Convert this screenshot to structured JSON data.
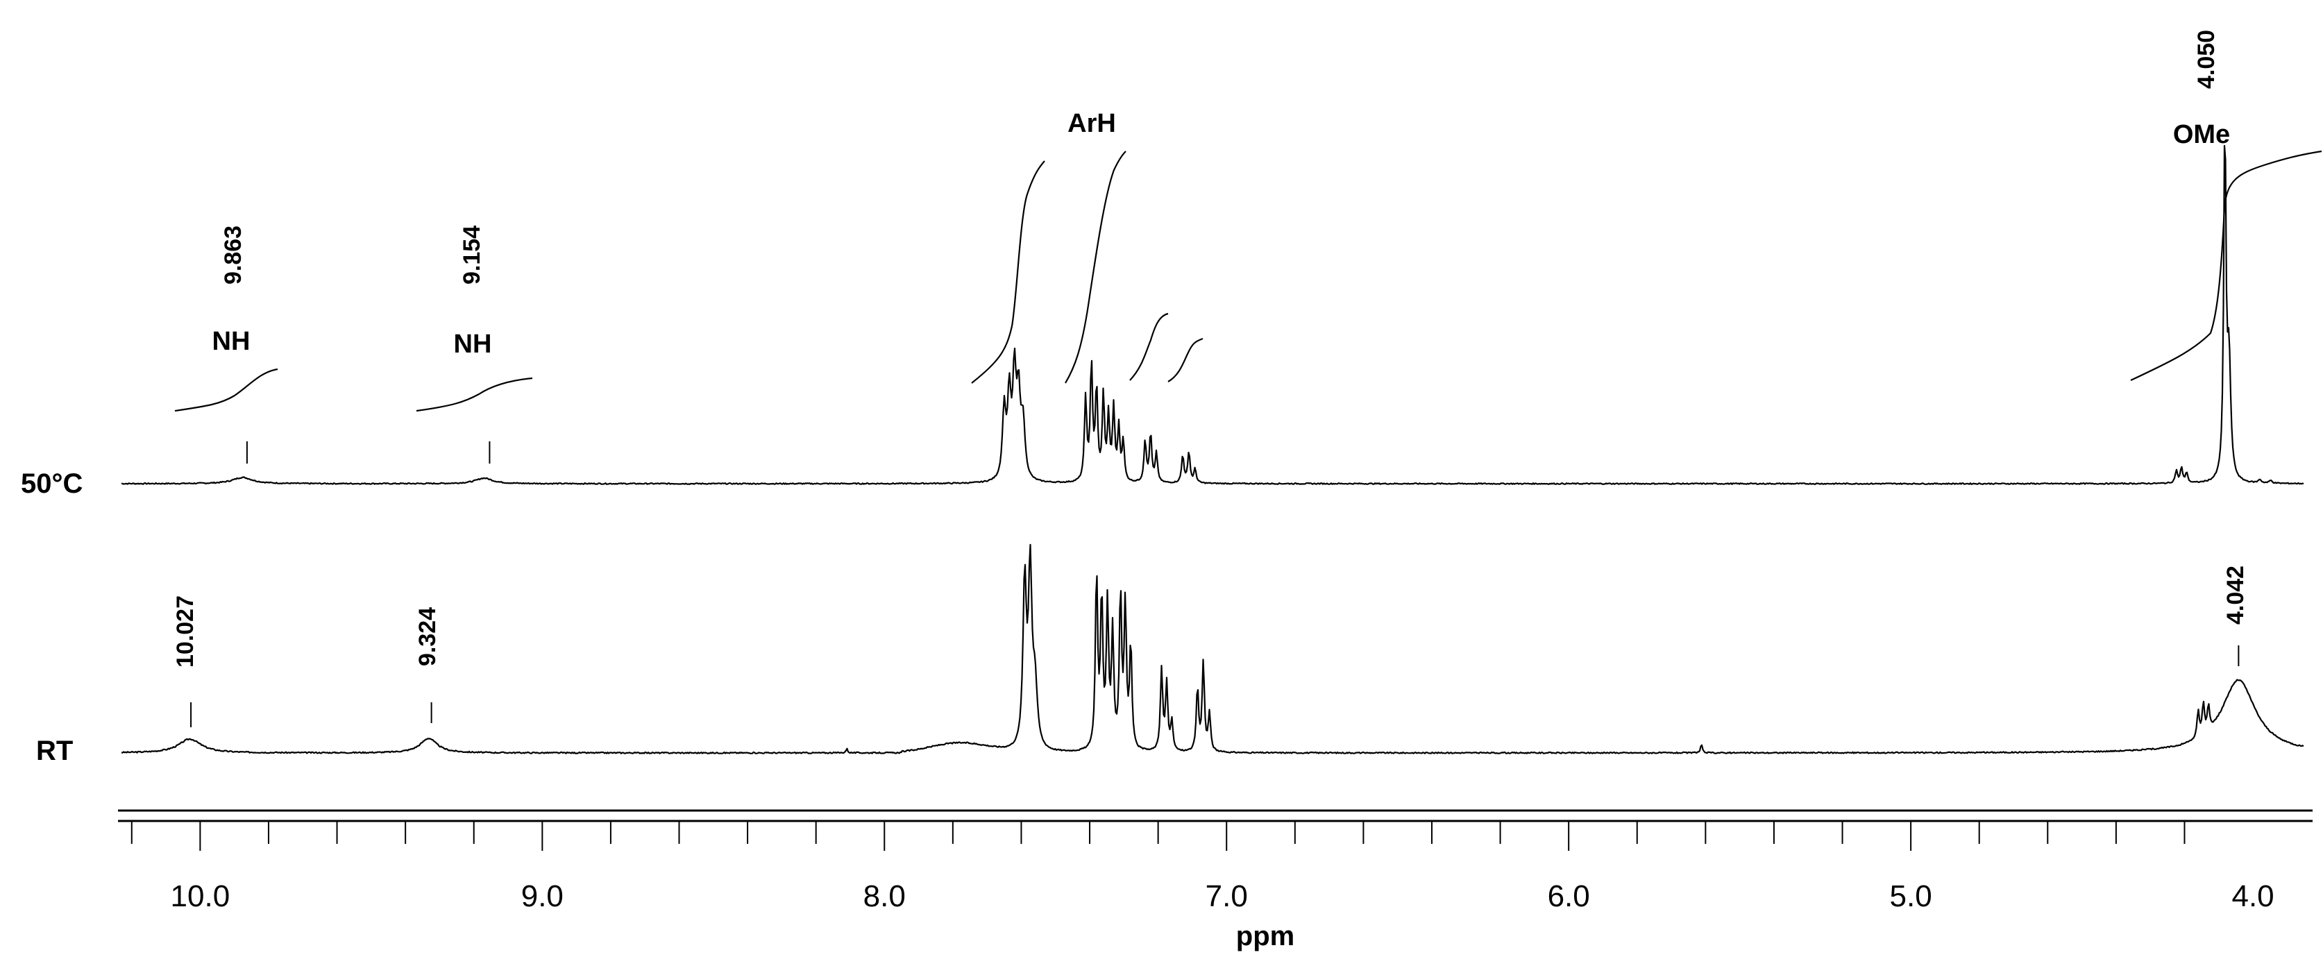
{
  "chart_data": {
    "type": "line",
    "x_axis": {
      "label": "ppm",
      "range": [
        10.23,
        3.85
      ],
      "reversed": true,
      "major_ticks": [
        10.0,
        9.0,
        8.0,
        7.0,
        6.0,
        5.0,
        4.0
      ],
      "tick_labels": [
        "10.0",
        "9.0",
        "8.0",
        "7.0",
        "6.0",
        "5.0",
        "4.0"
      ],
      "minor_step": 0.2
    },
    "grid": false,
    "series": [
      {
        "name": "50°C",
        "peaks": [
          {
            "ppm": 9.863,
            "label": "9.863",
            "group": "NH",
            "rel_height": 0.02
          },
          {
            "ppm": 9.154,
            "label": "9.154",
            "group": "NH",
            "rel_height": 0.02
          },
          {
            "ppm": 7.62,
            "group": "ArH",
            "rel_height": 0.32
          },
          {
            "ppm": 7.4,
            "group": "ArH",
            "rel_height": 0.4
          },
          {
            "ppm": 7.36,
            "group": "ArH",
            "rel_height": 0.3
          },
          {
            "ppm": 7.22,
            "group": "ArH",
            "rel_height": 0.22
          },
          {
            "ppm": 7.12,
            "group": "ArH",
            "rel_height": 0.16
          },
          {
            "ppm": 4.05,
            "label": "4.050",
            "group": "OMe",
            "rel_height": 1.0
          }
        ],
        "annotations": [
          "NH",
          "NH",
          "ArH",
          "OMe"
        ]
      },
      {
        "name": "RT",
        "peaks": [
          {
            "ppm": 10.027,
            "label": "10.027",
            "group": "NH",
            "rel_height": 0.05
          },
          {
            "ppm": 9.324,
            "label": "9.324",
            "group": "NH",
            "rel_height": 0.05
          },
          {
            "ppm": 7.59,
            "group": "ArH",
            "rel_height": 0.82
          },
          {
            "ppm": 7.37,
            "group": "ArH",
            "rel_height": 0.82
          },
          {
            "ppm": 7.3,
            "group": "ArH",
            "rel_height": 0.72
          },
          {
            "ppm": 7.18,
            "group": "ArH",
            "rel_height": 0.4
          },
          {
            "ppm": 7.06,
            "group": "ArH",
            "rel_height": 0.4
          },
          {
            "ppm": 4.042,
            "label": "4.042",
            "group": "OMe",
            "rel_height": 0.32
          }
        ]
      }
    ],
    "annotations": [
      {
        "text": "NH",
        "ppm": 9.863
      },
      {
        "text": "NH",
        "ppm": 9.154
      },
      {
        "text": "ArH",
        "ppm": 7.4
      },
      {
        "text": "OMe",
        "ppm": 4.05
      }
    ]
  }
}
